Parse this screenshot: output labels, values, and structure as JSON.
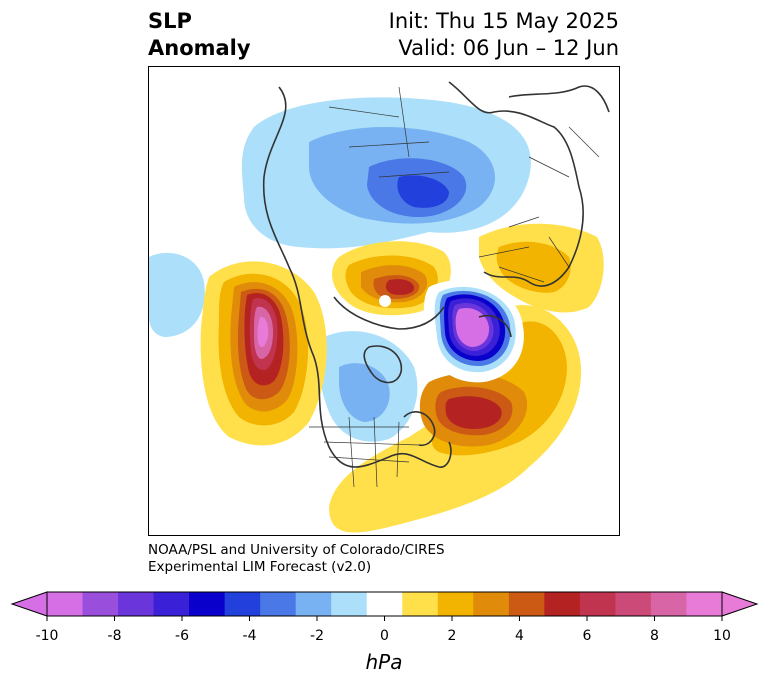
{
  "title": {
    "line1": "SLP",
    "line2": "Anomaly",
    "init": "Init: Thu 15 May 2025",
    "valid": "Valid: 06 Jun – 12 Jun"
  },
  "credit": {
    "line1": "NOAA/PSL and University of Colorado/CIRES",
    "line2": "Experimental LIM Forecast (v2.0)"
  },
  "colorbar": {
    "units": "hPa",
    "ticks": [
      "-10",
      "-8",
      "-6",
      "-4",
      "-2",
      "0",
      "2",
      "4",
      "6",
      "8",
      "10"
    ],
    "levels": [
      -10,
      -9,
      -8,
      -7,
      -6,
      -5,
      -4,
      -3,
      -2,
      -1,
      1,
      2,
      3,
      4,
      5,
      6,
      7,
      8,
      9,
      10
    ],
    "colors": [
      "#d66ee6",
      "#9a4fdc",
      "#6a36dc",
      "#3a20d6",
      "#0a00cc",
      "#2240dc",
      "#4a78e6",
      "#78b2f2",
      "#ace0fa",
      "#ffffff",
      "#ffe04a",
      "#f2b400",
      "#e08c0a",
      "#cc5a14",
      "#b42222",
      "#c03450",
      "#cc4a78",
      "#d866a6",
      "#e87ad8"
    ],
    "extend_low": "#d66ee6",
    "extend_high": "#e87ad8"
  },
  "map": {
    "projection": "north polar stereographic",
    "features": [
      {
        "name": "anomaly-positive-north-pacific",
        "value": 7
      },
      {
        "name": "anomaly-positive-north-atlantic",
        "value": 6
      },
      {
        "name": "anomaly-negative-barents-kara",
        "value": -10
      },
      {
        "name": "anomaly-negative-siberia",
        "value": -5
      },
      {
        "name": "anomaly-positive-beaufort",
        "value": 6
      }
    ]
  }
}
